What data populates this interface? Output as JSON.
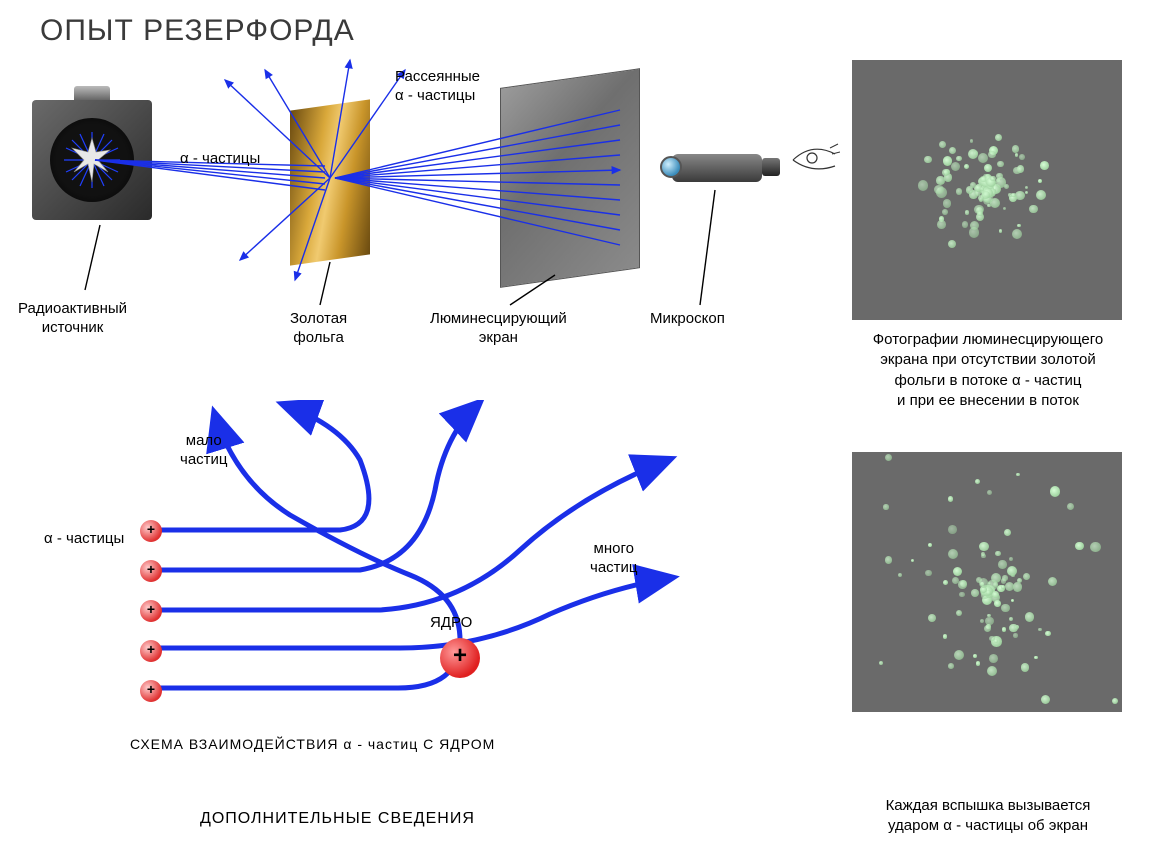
{
  "title": "ОПЫТ РЕЗЕРФОРДА",
  "upper": {
    "source_label": "Радиоактивный\nисточник",
    "alpha_label": "α - частицы",
    "scattered_label": "Рассеянные\nα - частицы",
    "foil_label": "Золотая\nфольга",
    "screen_label": "Люминесцирующий\nэкран",
    "microscope_label": "Микроскоп",
    "colors": {
      "ray": "#1a2fe8",
      "foil": "#d9a83a",
      "screen": "#808080",
      "box": "#3a3a3a",
      "pointer": "#000000"
    }
  },
  "lower": {
    "few_label": "мало\nчастиц",
    "many_label": "много\nчастиц",
    "alpha_left_label": "α - частицы",
    "nucleus_label": "ЯДРО",
    "scheme_label": "СХЕМА ВЗАИМОДЕЙСТВИЯ  α - частиц С ЯДРОМ",
    "additional_label": "ДОПОЛНИТЕЛЬНЫЕ СВЕДЕНИЯ"
  },
  "right": {
    "caption1": "Фотографии люминесцирующего\nэкрана при отсутствии золотой\nфольги в потоке α - частиц\nи при ее внесении в поток",
    "caption2": "Каждая вспышка вызывается\nударом α - частицы об экран",
    "panel_bg": "#6a6a6a",
    "dot_color": "#a8e0a8"
  },
  "style": {
    "title_color": "#3a3a3a",
    "title_fontsize": 30,
    "label_fontsize": 15,
    "line_width_thin": 1.4,
    "line_width_thick": 4,
    "blue": "#1a2fe8"
  }
}
